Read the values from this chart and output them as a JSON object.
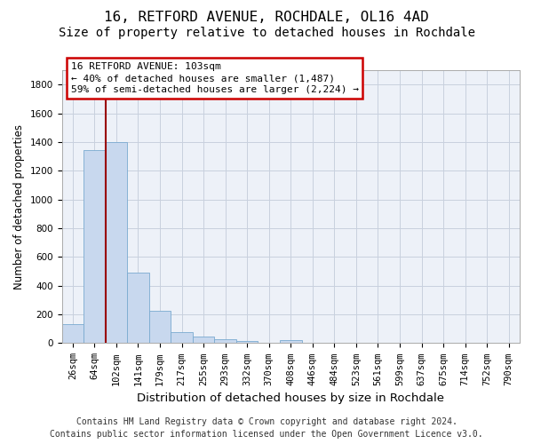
{
  "title1": "16, RETFORD AVENUE, ROCHDALE, OL16 4AD",
  "title2": "Size of property relative to detached houses in Rochdale",
  "xlabel": "Distribution of detached houses by size in Rochdale",
  "ylabel": "Number of detached properties",
  "categories": [
    "26sqm",
    "64sqm",
    "102sqm",
    "141sqm",
    "179sqm",
    "217sqm",
    "255sqm",
    "293sqm",
    "332sqm",
    "370sqm",
    "408sqm",
    "446sqm",
    "484sqm",
    "523sqm",
    "561sqm",
    "599sqm",
    "637sqm",
    "675sqm",
    "714sqm",
    "752sqm",
    "790sqm"
  ],
  "bar_heights": [
    135,
    1345,
    1400,
    490,
    225,
    75,
    45,
    30,
    15,
    0,
    20,
    0,
    0,
    0,
    0,
    0,
    0,
    0,
    0,
    0,
    0
  ],
  "bar_color": "#c8d8ee",
  "bar_edge_color": "#7aaad0",
  "highlight_bar_index": 2,
  "highlight_color": "#990000",
  "annotation_line1": "16 RETFORD AVENUE: 103sqm",
  "annotation_line2": "← 40% of detached houses are smaller (1,487)",
  "annotation_line3": "59% of semi-detached houses are larger (2,224) →",
  "annotation_box_color": "#cc0000",
  "annotation_box_bg": "#ffffff",
  "ylim": [
    0,
    1900
  ],
  "yticks": [
    0,
    200,
    400,
    600,
    800,
    1000,
    1200,
    1400,
    1600,
    1800
  ],
  "footer_line1": "Contains HM Land Registry data © Crown copyright and database right 2024.",
  "footer_line2": "Contains public sector information licensed under the Open Government Licence v3.0.",
  "bg_color": "#edf1f8",
  "grid_color": "#c8d0de",
  "title1_fontsize": 11.5,
  "title2_fontsize": 10,
  "xlabel_fontsize": 9.5,
  "ylabel_fontsize": 8.5,
  "tick_fontsize": 7.5,
  "annotation_fontsize": 8,
  "footer_fontsize": 7
}
